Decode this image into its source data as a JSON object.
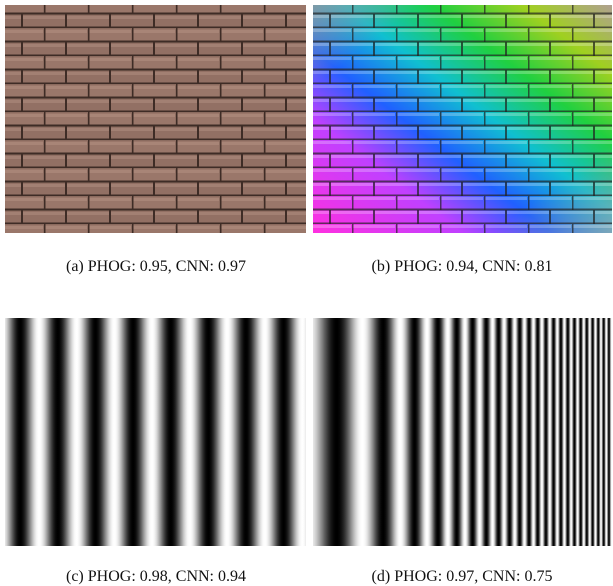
{
  "panels": [
    {
      "caption": "(a) PHOG: 0.95, CNN: 0.97"
    },
    {
      "caption": "(b) PHOG: 0.94, CNN: 0.81"
    },
    {
      "caption": "(c) PHOG: 0.98, CNN: 0.94"
    },
    {
      "caption": "(d) PHOG: 0.97, CNN: 0.75"
    }
  ]
}
